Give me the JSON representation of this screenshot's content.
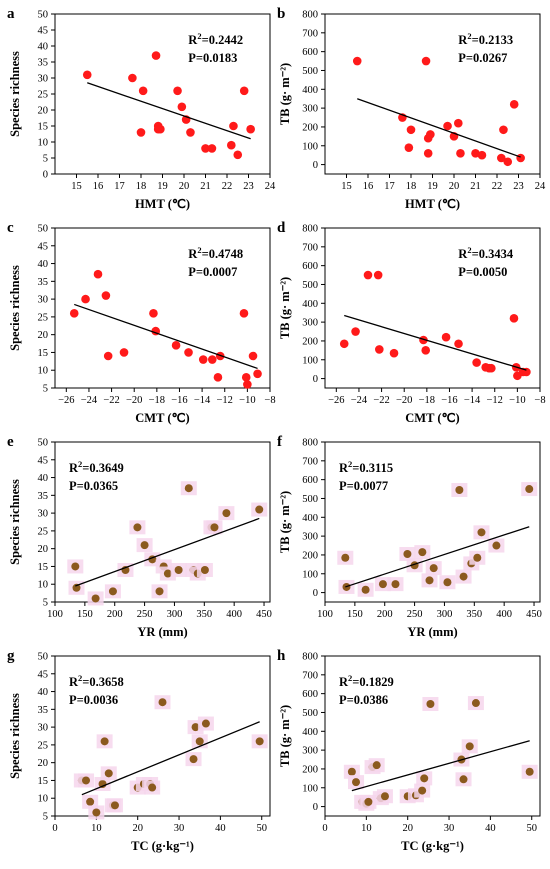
{
  "chart_data": [
    {
      "panel": "a",
      "type": "scatter",
      "xlabel": "HMT (℃)",
      "ylabel": "Species richness",
      "xlim": [
        14,
        24
      ],
      "ylim": [
        0,
        50
      ],
      "xticks": [
        15,
        16,
        17,
        18,
        19,
        20,
        21,
        22,
        23,
        24
      ],
      "yticks": [
        0,
        5,
        10,
        15,
        20,
        25,
        30,
        35,
        40,
        45,
        50
      ],
      "r2": "R²=0.2442",
      "p": "P=0.0183",
      "stat_pos": "top-right",
      "point_color": "#ff1a1a",
      "point_style": "solid",
      "x": [
        15.5,
        17.6,
        18.0,
        18.1,
        18.7,
        18.8,
        18.8,
        18.9,
        19.7,
        19.9,
        20.1,
        20.3,
        21.0,
        21.3,
        22.2,
        22.3,
        22.5,
        22.8,
        23.1
      ],
      "y": [
        31,
        30,
        13,
        26,
        37,
        15,
        14,
        14,
        26,
        21,
        17,
        13,
        8,
        8,
        9,
        15,
        6,
        26,
        14
      ],
      "fit": [
        [
          15.5,
          28.5
        ],
        [
          23.1,
          11
        ]
      ]
    },
    {
      "panel": "b",
      "type": "scatter",
      "xlabel": "HMT (℃)",
      "ylabel": "TB (g· m⁻²)",
      "xlim": [
        14,
        24
      ],
      "ylim": [
        -50,
        800
      ],
      "xticks": [
        15,
        16,
        17,
        18,
        19,
        20,
        21,
        22,
        23,
        24
      ],
      "yticks": [
        0,
        100,
        200,
        300,
        400,
        500,
        600,
        700,
        800
      ],
      "r2": "R²=0.2133",
      "p": "P=0.0267",
      "stat_pos": "top-right",
      "point_color": "#ff1a1a",
      "point_style": "solid",
      "x": [
        15.5,
        17.6,
        17.9,
        18.0,
        18.7,
        18.8,
        18.8,
        18.9,
        19.7,
        20.0,
        20.2,
        20.3,
        21.0,
        21.3,
        22.2,
        22.3,
        22.5,
        22.8,
        23.1
      ],
      "y": [
        550,
        250,
        90,
        185,
        550,
        140,
        60,
        160,
        205,
        150,
        220,
        60,
        60,
        50,
        35,
        185,
        15,
        320,
        35
      ],
      "fit": [
        [
          15.5,
          350
        ],
        [
          23.1,
          40
        ]
      ]
    },
    {
      "panel": "c",
      "type": "scatter",
      "xlabel": "CMT (℃)",
      "ylabel": "Species richness",
      "xlim": [
        -27,
        -8
      ],
      "ylim": [
        5,
        50
      ],
      "xticks": [
        -26,
        -24,
        -22,
        -20,
        -18,
        -16,
        -14,
        -12,
        -10,
        -8
      ],
      "yticks": [
        5,
        10,
        15,
        20,
        25,
        30,
        35,
        40,
        45,
        50
      ],
      "r2": "R²=0.4748",
      "p": "P=0.0007",
      "stat_pos": "top-right",
      "point_color": "#ff1a1a",
      "point_style": "solid",
      "x": [
        -25.3,
        -24.3,
        -23.2,
        -22.5,
        -22.3,
        -20.9,
        -18.3,
        -18.1,
        -16.3,
        -15.2,
        -13.9,
        -13.1,
        -12.6,
        -12.4,
        -10.3,
        -10.1,
        -10.0,
        -9.5,
        -9.1
      ],
      "y": [
        26,
        30,
        37,
        31,
        14,
        15,
        26,
        21,
        17,
        15,
        13,
        13,
        8,
        14,
        26,
        8,
        6,
        14,
        9
      ],
      "fit": [
        [
          -25.3,
          28.5
        ],
        [
          -9.1,
          10.5
        ]
      ]
    },
    {
      "panel": "d",
      "type": "scatter",
      "xlabel": "CMT (℃)",
      "ylabel": "TB (g· m⁻²)",
      "xlim": [
        -27,
        -8
      ],
      "ylim": [
        -50,
        800
      ],
      "xticks": [
        -26,
        -24,
        -22,
        -20,
        -18,
        -16,
        -14,
        -12,
        -10,
        -8
      ],
      "yticks": [
        0,
        100,
        200,
        300,
        400,
        500,
        600,
        700,
        800
      ],
      "r2": "R²=0.3434",
      "p": "P=0.0050",
      "stat_pos": "top-right",
      "point_color": "#ff1a1a",
      "point_style": "solid",
      "x": [
        -25.3,
        -24.3,
        -23.2,
        -22.3,
        -22.2,
        -20.9,
        -18.3,
        -18.1,
        -16.3,
        -15.2,
        -13.6,
        -12.8,
        -12.5,
        -12.3,
        -10.3,
        -10.1,
        -10.0,
        -9.5,
        -9.2
      ],
      "y": [
        185,
        250,
        550,
        550,
        155,
        135,
        205,
        150,
        220,
        185,
        85,
        60,
        55,
        55,
        320,
        60,
        15,
        35,
        35
      ],
      "fit": [
        [
          -25.3,
          335
        ],
        [
          -9.2,
          45
        ]
      ]
    },
    {
      "panel": "e",
      "type": "scatter",
      "xlabel": "YR (mm)",
      "ylabel": "Species richness",
      "xlim": [
        100,
        460
      ],
      "ylim": [
        5,
        50
      ],
      "xticks": [
        100,
        150,
        200,
        250,
        300,
        350,
        400,
        450
      ],
      "yticks": [
        5,
        10,
        15,
        20,
        25,
        30,
        35,
        40,
        45,
        50
      ],
      "r2": "R²=0.3649",
      "p": "P=0.0365",
      "stat_pos": "top-left",
      "point_color": "#8b5a1e",
      "point_style": "halo",
      "x": [
        134,
        136,
        168,
        197,
        218,
        238,
        250,
        263,
        275,
        282,
        289,
        307,
        324,
        332,
        339,
        351,
        362,
        367,
        387,
        442
      ],
      "y": [
        15,
        9,
        6,
        8,
        14,
        26,
        21,
        17,
        8,
        15,
        13,
        14,
        37,
        14,
        13,
        14,
        26,
        26,
        30,
        31
      ],
      "fit": [
        [
          134,
          9.5
        ],
        [
          442,
          28.5
        ]
      ]
    },
    {
      "panel": "f",
      "type": "scatter",
      "xlabel": "YR (mm)",
      "ylabel": "TB (g· m⁻²)",
      "xlim": [
        100,
        460
      ],
      "ylim": [
        -50,
        800
      ],
      "xticks": [
        100,
        150,
        200,
        250,
        300,
        350,
        400,
        450
      ],
      "yticks": [
        0,
        100,
        200,
        300,
        400,
        500,
        600,
        700,
        800
      ],
      "r2": "R²=0.3115",
      "p": "P=0.0077",
      "stat_pos": "top-left",
      "point_color": "#8b5a1e",
      "point_style": "halo",
      "x": [
        134,
        136,
        168,
        197,
        218,
        238,
        250,
        263,
        275,
        282,
        305,
        325,
        332,
        345,
        355,
        362,
        387,
        442
      ],
      "y": [
        185,
        30,
        15,
        45,
        45,
        205,
        145,
        215,
        65,
        130,
        55,
        545,
        85,
        155,
        185,
        320,
        250,
        550
      ],
      "fit": [
        [
          134,
          30
        ],
        [
          442,
          350
        ]
      ]
    },
    {
      "panel": "g",
      "type": "scatter",
      "xlabel": "TC (g·kg⁻¹)",
      "ylabel": "Species richness",
      "xlim": [
        0,
        52
      ],
      "ylim": [
        5,
        50
      ],
      "xticks": [
        0,
        10,
        20,
        30,
        40,
        50
      ],
      "yticks": [
        5,
        10,
        15,
        20,
        25,
        30,
        35,
        40,
        45,
        50
      ],
      "r2": "R²=0.3658",
      "p": "P=0.0036",
      "stat_pos": "top-left",
      "point_color": "#8b5a1e",
      "point_style": "halo",
      "x": [
        6.5,
        7.5,
        8.5,
        10,
        11.5,
        12,
        13,
        14,
        14.5,
        20,
        21.5,
        23,
        23.5,
        26,
        33.5,
        34,
        35,
        36.5,
        49.5
      ],
      "y": [
        15,
        15,
        9,
        6,
        14,
        26,
        17,
        8,
        8,
        13,
        14,
        14,
        13,
        37,
        21,
        30,
        26,
        31,
        26
      ],
      "fit": [
        [
          6.5,
          11
        ],
        [
          49.5,
          31.5
        ]
      ]
    },
    {
      "panel": "h",
      "type": "scatter",
      "xlabel": "TC (g·kg⁻¹)",
      "ylabel": "TB (g· m⁻²)",
      "xlim": [
        0,
        52
      ],
      "ylim": [
        -50,
        800
      ],
      "xticks": [
        0,
        10,
        20,
        30,
        40,
        50
      ],
      "yticks": [
        0,
        100,
        200,
        300,
        400,
        500,
        600,
        700,
        800
      ],
      "r2": "R²=0.1829",
      "p": "P=0.0386",
      "stat_pos": "top-left",
      "point_color": "#8b5a1e",
      "point_style": "halo",
      "x": [
        6.5,
        7.5,
        9,
        10,
        10.5,
        11.5,
        12.5,
        13.5,
        14.5,
        20,
        22,
        23.5,
        24,
        25.5,
        33,
        33.5,
        35,
        36.5,
        49.5
      ],
      "y": [
        185,
        130,
        25,
        15,
        25,
        210,
        220,
        45,
        55,
        55,
        60,
        85,
        150,
        545,
        250,
        145,
        320,
        550,
        185
      ],
      "fit": [
        [
          6.5,
          85
        ],
        [
          49.5,
          350
        ]
      ]
    }
  ]
}
